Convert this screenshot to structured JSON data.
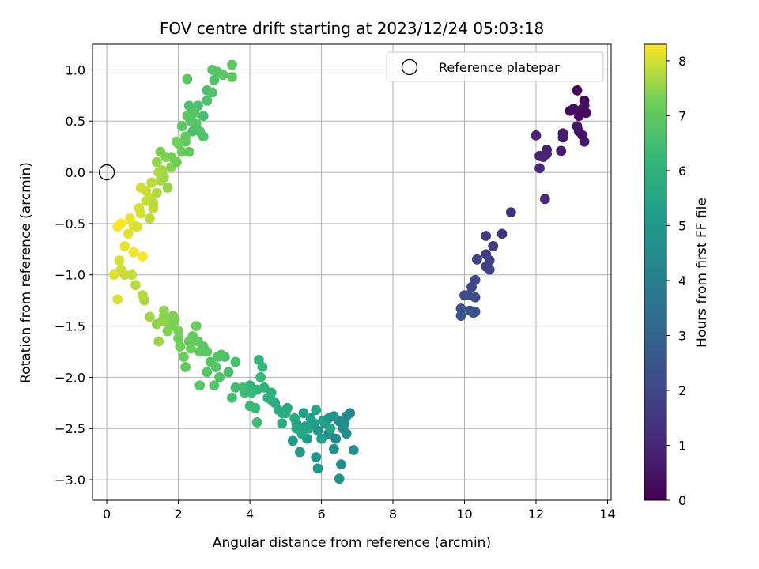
{
  "chart_data": {
    "type": "scatter",
    "title": "FOV centre drift starting at 2023/12/24 05:03:18",
    "xlabel": "Angular distance from reference (arcmin)",
    "ylabel": "Rotation from reference (arcmin)",
    "xlim": [
      -0.4,
      14.1
    ],
    "ylim": [
      -3.2,
      1.25
    ],
    "xticks": [
      0,
      2,
      4,
      6,
      8,
      10,
      12,
      14
    ],
    "yticks": [
      -3.0,
      -2.5,
      -2.0,
      -1.5,
      -1.0,
      -0.5,
      0.0,
      0.5,
      1.0
    ],
    "xtick_labels": [
      "0",
      "2",
      "4",
      "6",
      "8",
      "10",
      "12",
      "14"
    ],
    "ytick_labels": [
      "−3.0",
      "−2.5",
      "−2.0",
      "−1.5",
      "−1.0",
      "−0.5",
      "0.0",
      "0.5",
      "1.0"
    ],
    "grid": true,
    "legend": {
      "placement": "top-right",
      "entries": [
        "Reference platepar"
      ]
    },
    "reference_point": {
      "x": 0,
      "y": 0
    },
    "colorbar": {
      "label": "Hours from first FF file",
      "range": [
        0,
        8.3
      ],
      "ticks": [
        0,
        1,
        2,
        3,
        4,
        5,
        6,
        7,
        8
      ],
      "tick_labels": [
        "0",
        "1",
        "2",
        "3",
        "4",
        "5",
        "6",
        "7",
        "8"
      ],
      "colormap": "viridis"
    },
    "points": [
      [
        13.15,
        0.8,
        0.05
      ],
      [
        13.35,
        0.7,
        0.1
      ],
      [
        13.3,
        0.62,
        0.15
      ],
      [
        13.4,
        0.58,
        0.2
      ],
      [
        13.2,
        0.55,
        0.25
      ],
      [
        12.95,
        0.6,
        0.3
      ],
      [
        13.05,
        0.62,
        0.35
      ],
      [
        13.35,
        0.65,
        0.4
      ],
      [
        13.15,
        0.45,
        0.45
      ],
      [
        13.2,
        0.4,
        0.5
      ],
      [
        13.3,
        0.36,
        0.55
      ],
      [
        13.35,
        0.3,
        0.6
      ],
      [
        12.75,
        0.38,
        0.65
      ],
      [
        12.75,
        0.34,
        0.7
      ],
      [
        12.7,
        0.21,
        0.75
      ],
      [
        12.3,
        0.22,
        0.8
      ],
      [
        12.3,
        0.18,
        0.85
      ],
      [
        12.1,
        0.16,
        0.9
      ],
      [
        12.0,
        0.36,
        0.95
      ],
      [
        12.2,
        0.15,
        1.0
      ],
      [
        12.1,
        0.04,
        1.05
      ],
      [
        12.25,
        -0.26,
        1.1
      ],
      [
        11.3,
        -0.39,
        1.3
      ],
      [
        11.05,
        -0.6,
        1.45
      ],
      [
        10.6,
        -0.62,
        1.55
      ],
      [
        10.8,
        -0.72,
        1.65
      ],
      [
        10.7,
        -0.86,
        1.75
      ],
      [
        10.6,
        -0.8,
        1.8
      ],
      [
        10.6,
        -0.92,
        1.85
      ],
      [
        10.7,
        -0.95,
        1.9
      ],
      [
        10.35,
        -0.85,
        1.95
      ],
      [
        10.3,
        -1.05,
        2.0
      ],
      [
        10.2,
        -1.12,
        2.05
      ],
      [
        10.1,
        -1.2,
        2.1
      ],
      [
        10.0,
        -1.2,
        2.15
      ],
      [
        10.3,
        -1.22,
        2.2
      ],
      [
        10.15,
        -1.35,
        2.25
      ],
      [
        10.25,
        -1.37,
        2.3
      ],
      [
        10.3,
        -1.36,
        2.35
      ],
      [
        9.9,
        -1.33,
        2.4
      ],
      [
        9.9,
        -1.4,
        2.45
      ],
      [
        6.8,
        -2.35,
        4.35
      ],
      [
        6.7,
        -2.38,
        4.4
      ],
      [
        6.5,
        -2.43,
        4.45
      ],
      [
        6.6,
        -2.5,
        4.5
      ],
      [
        6.4,
        -2.6,
        4.55
      ],
      [
        6.2,
        -2.55,
        4.6
      ],
      [
        6.9,
        -2.71,
        4.65
      ],
      [
        6.55,
        -2.85,
        4.7
      ],
      [
        6.5,
        -2.99,
        4.75
      ],
      [
        6.35,
        -2.7,
        4.8
      ],
      [
        6.1,
        -2.45,
        4.85
      ],
      [
        5.9,
        -2.52,
        4.9
      ],
      [
        5.85,
        -2.78,
        4.95
      ],
      [
        5.9,
        -2.89,
        5.0
      ],
      [
        5.6,
        -2.6,
        5.05
      ],
      [
        5.4,
        -2.73,
        5.1
      ],
      [
        5.2,
        -2.62,
        5.15
      ],
      [
        5.3,
        -2.45,
        5.2
      ],
      [
        5.7,
        -2.4,
        5.25
      ],
      [
        5.5,
        -2.35,
        5.3
      ],
      [
        6.0,
        -2.6,
        5.35
      ],
      [
        6.25,
        -2.5,
        5.4
      ],
      [
        6.05,
        -2.42,
        5.45
      ],
      [
        5.85,
        -2.32,
        5.5
      ],
      [
        5.65,
        -2.5,
        5.55
      ],
      [
        5.45,
        -2.55,
        5.6
      ],
      [
        5.25,
        -2.4,
        5.65
      ],
      [
        5.05,
        -2.3,
        5.7
      ],
      [
        4.9,
        -2.45,
        5.75
      ],
      [
        4.8,
        -2.32,
        5.8
      ],
      [
        4.7,
        -2.25,
        5.85
      ],
      [
        4.6,
        -2.22,
        5.9
      ],
      [
        4.5,
        -2.2,
        5.95
      ],
      [
        4.4,
        -2.1,
        6.0
      ],
      [
        4.2,
        -2.12,
        6.05
      ],
      [
        4.0,
        -2.08,
        6.1
      ],
      [
        4.25,
        -1.83,
        6.15
      ],
      [
        4.35,
        -1.9,
        6.2
      ],
      [
        4.3,
        -2.0,
        6.25
      ],
      [
        4.15,
        -2.3,
        6.3
      ],
      [
        4.0,
        -2.28,
        6.35
      ],
      [
        4.2,
        -2.44,
        6.4
      ],
      [
        3.85,
        -2.15,
        6.45
      ],
      [
        3.6,
        -2.1,
        6.5
      ],
      [
        3.5,
        -2.2,
        6.55
      ],
      [
        3.6,
        -1.85,
        6.6
      ],
      [
        3.3,
        -1.8,
        6.65
      ],
      [
        3.2,
        -1.78,
        6.7
      ],
      [
        3.15,
        -2.0,
        6.75
      ],
      [
        3.05,
        -1.9,
        6.8
      ],
      [
        2.9,
        -1.85,
        6.85
      ],
      [
        2.8,
        -1.95,
        6.9
      ],
      [
        2.7,
        -1.7,
        6.95
      ],
      [
        2.6,
        -1.75,
        7.0
      ],
      [
        2.55,
        -1.65,
        7.05
      ],
      [
        2.4,
        -1.6,
        7.1
      ],
      [
        2.3,
        -1.65,
        7.15
      ],
      [
        2.15,
        -1.8,
        7.2
      ],
      [
        2.05,
        -1.7,
        7.25
      ],
      [
        2.0,
        -1.55,
        7.3
      ],
      [
        1.8,
        -1.5,
        7.35
      ],
      [
        1.85,
        -1.4,
        7.4
      ],
      [
        1.7,
        -1.45,
        7.45
      ],
      [
        1.6,
        -1.35,
        7.5
      ],
      [
        1.55,
        -1.45,
        7.55
      ],
      [
        1.45,
        -1.65,
        7.6
      ],
      [
        1.2,
        -1.41,
        7.65
      ],
      [
        1.05,
        -1.25,
        7.7
      ],
      [
        1.0,
        -1.2,
        7.75
      ],
      [
        0.8,
        -1.1,
        7.8
      ],
      [
        0.7,
        -1.0,
        7.85
      ],
      [
        0.5,
        -1.0,
        7.9
      ],
      [
        0.4,
        -0.95,
        7.95
      ],
      [
        0.35,
        -0.86,
        8.0
      ],
      [
        0.3,
        -1.24,
        8.05
      ],
      [
        0.2,
        -1.0,
        8.1
      ],
      [
        0.5,
        -0.72,
        8.15
      ],
      [
        0.75,
        -0.78,
        8.2
      ],
      [
        1.0,
        -0.82,
        8.25
      ],
      [
        0.3,
        -0.53,
        8.3
      ],
      [
        0.4,
        -0.5,
        8.3
      ],
      [
        2.5,
        -1.5,
        7.15
      ],
      [
        2.6,
        -2.08,
        6.85
      ],
      [
        2.8,
        -1.75,
        6.9
      ],
      [
        3.4,
        -1.95,
        6.6
      ],
      [
        3.8,
        -2.1,
        6.4
      ],
      [
        4.6,
        -2.15,
        5.9
      ],
      [
        5.0,
        -2.35,
        5.7
      ],
      [
        5.8,
        -2.45,
        5.2
      ],
      [
        6.2,
        -2.4,
        4.9
      ],
      [
        6.7,
        -2.55,
        4.55
      ],
      [
        1.6,
        -1.4,
        7.45
      ],
      [
        2.2,
        -1.9,
        7.1
      ],
      [
        2.0,
        -1.62,
        7.25
      ],
      [
        1.9,
        -1.45,
        7.35
      ],
      [
        3.0,
        -2.08,
        6.8
      ],
      [
        4.9,
        -2.35,
        5.75
      ],
      [
        5.3,
        -2.5,
        5.6
      ],
      [
        6.35,
        -2.38,
        4.8
      ],
      [
        6.65,
        -2.45,
        4.6
      ],
      [
        1.4,
        -1.48,
        7.5
      ],
      [
        1.7,
        -1.55,
        7.4
      ],
      [
        2.35,
        -1.72,
        7.15
      ],
      [
        3.1,
        -1.8,
        6.75
      ],
      [
        4.05,
        -2.15,
        6.25
      ],
      [
        5.55,
        -2.48,
        5.4
      ],
      [
        0.6,
        -0.6,
        8.1
      ],
      [
        0.75,
        -0.52,
        8.1
      ],
      [
        0.85,
        -0.53,
        8.05
      ],
      [
        0.65,
        -0.45,
        8.15
      ],
      [
        0.9,
        -0.35,
        8.05
      ],
      [
        0.95,
        -0.15,
        8.0
      ],
      [
        1.1,
        -0.18,
        7.95
      ],
      [
        1.2,
        -0.25,
        7.9
      ],
      [
        1.3,
        -0.35,
        7.85
      ],
      [
        1.2,
        -0.45,
        7.85
      ],
      [
        1.3,
        -0.3,
        7.8
      ],
      [
        1.4,
        -0.2,
        7.75
      ],
      [
        1.5,
        -0.08,
        7.7
      ],
      [
        1.55,
        0.02,
        7.65
      ],
      [
        1.6,
        -0.05,
        7.6
      ],
      [
        1.4,
        0.1,
        7.55
      ],
      [
        1.7,
        -0.15,
        7.5
      ],
      [
        1.8,
        0.05,
        7.45
      ],
      [
        1.65,
        0.15,
        7.4
      ],
      [
        1.5,
        0.2,
        7.35
      ],
      [
        1.8,
        0.15,
        7.3
      ],
      [
        1.95,
        0.1,
        7.25
      ],
      [
        2.0,
        0.28,
        7.2
      ],
      [
        2.1,
        0.2,
        7.15
      ],
      [
        2.2,
        0.3,
        7.1
      ],
      [
        2.3,
        0.2,
        7.05
      ],
      [
        2.1,
        0.45,
        7.0
      ],
      [
        2.25,
        0.55,
        6.95
      ],
      [
        2.4,
        0.6,
        6.9
      ],
      [
        2.35,
        0.5,
        6.85
      ],
      [
        2.5,
        0.48,
        6.8
      ],
      [
        2.6,
        0.4,
        6.75
      ],
      [
        2.7,
        0.35,
        6.7
      ],
      [
        2.55,
        0.65,
        6.65
      ],
      [
        2.3,
        0.65,
        6.6
      ],
      [
        2.7,
        0.55,
        6.55
      ],
      [
        2.4,
        0.4,
        6.6
      ],
      [
        2.8,
        0.8,
        6.65
      ],
      [
        2.95,
        0.78,
        6.7
      ],
      [
        3.0,
        0.9,
        6.75
      ],
      [
        3.1,
        0.98,
        6.8
      ],
      [
        2.95,
        1.0,
        6.85
      ],
      [
        3.25,
        0.95,
        6.9
      ],
      [
        3.5,
        1.05,
        6.95
      ],
      [
        3.5,
        0.93,
        7.0
      ],
      [
        2.25,
        0.91,
        6.9
      ],
      [
        1.1,
        -0.28,
        7.9
      ],
      [
        0.95,
        -0.4,
        8.0
      ],
      [
        1.25,
        -0.1,
        7.8
      ],
      [
        1.45,
        0.0,
        7.7
      ],
      [
        1.95,
        0.3,
        7.25
      ],
      [
        2.2,
        0.35,
        7.1
      ],
      [
        2.45,
        0.58,
        6.85
      ],
      [
        2.8,
        0.7,
        6.7
      ]
    ]
  }
}
